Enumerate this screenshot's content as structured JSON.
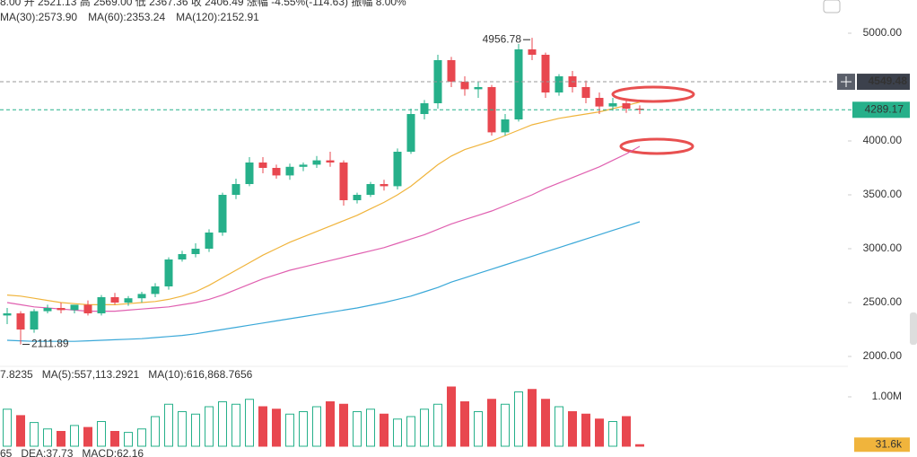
{
  "chart_data": {
    "type": "candlestick",
    "info_line": "8.00 开 2521.13 高 2569.00 低 2367.36 收 2406.49 涨幅 -4.55%(-114.63) 振幅 8.00%",
    "up_color": "#26b08a",
    "down_color": "#e8474f",
    "open": [
      2380,
      2400,
      2250,
      2420,
      2450,
      2430,
      2480,
      2400,
      2550,
      2500,
      2540,
      2580,
      2650,
      2900,
      2950,
      3000,
      3150,
      3500,
      3600,
      3800,
      3750,
      3680,
      3760,
      3780,
      3820,
      3800,
      3450,
      3500,
      3600,
      3580,
      3900,
      4250,
      4350,
      4750,
      4550,
      4480,
      4500,
      4080,
      4200,
      4850,
      4800,
      4450,
      4600,
      4500,
      4400,
      4320,
      4350,
      4300
    ],
    "high": [
      2450,
      2420,
      2440,
      2480,
      2500,
      2470,
      2520,
      2570,
      2590,
      2560,
      2600,
      2680,
      2920,
      2980,
      3050,
      3180,
      3520,
      3650,
      3850,
      3850,
      3780,
      3790,
      3800,
      3860,
      3900,
      3820,
      3520,
      3620,
      3640,
      3930,
      4300,
      4380,
      4800,
      4780,
      4600,
      4550,
      4520,
      4250,
      4900,
      4956.78,
      4820,
      4620,
      4650,
      4560,
      4450,
      4400,
      4380,
      4330
    ],
    "low": [
      2300,
      2111.89,
      2220,
      2400,
      2400,
      2400,
      2380,
      2380,
      2480,
      2470,
      2500,
      2550,
      2620,
      2880,
      2920,
      2970,
      3120,
      3460,
      3580,
      3700,
      3650,
      3640,
      3720,
      3750,
      3760,
      3400,
      3420,
      3480,
      3540,
      3550,
      3880,
      4200,
      4300,
      4500,
      4420,
      4400,
      4050,
      4050,
      4180,
      4750,
      4400,
      4420,
      4450,
      4350,
      4250,
      4280,
      4260,
      4250
    ],
    "close": [
      2400,
      2250,
      2420,
      2450,
      2430,
      2480,
      2400,
      2550,
      2500,
      2540,
      2580,
      2650,
      2900,
      2950,
      3000,
      3150,
      3500,
      3600,
      3800,
      3750,
      3680,
      3760,
      3780,
      3820,
      3800,
      3450,
      3500,
      3600,
      3580,
      3900,
      4250,
      4350,
      4750,
      4550,
      4480,
      4500,
      4080,
      4200,
      4850,
      4800,
      4450,
      4600,
      4500,
      4400,
      4320,
      4350,
      4300,
      4289.17
    ],
    "series": [
      {
        "name": "MA(30):2573.90",
        "color": "#f0b43c",
        "values": [
          2570,
          2560,
          2540,
          2520,
          2500,
          2490,
          2480,
          2480,
          2480,
          2490,
          2500,
          2510,
          2530,
          2560,
          2600,
          2660,
          2730,
          2800,
          2870,
          2940,
          3000,
          3060,
          3110,
          3160,
          3210,
          3260,
          3310,
          3370,
          3430,
          3500,
          3580,
          3680,
          3780,
          3860,
          3920,
          3960,
          4000,
          4050,
          4100,
          4150,
          4180,
          4210,
          4230,
          4250,
          4270,
          4300,
          4330,
          4360
        ]
      },
      {
        "name": "MA(60):2353.24",
        "color": "#e060b0",
        "values": [
          2500,
          2480,
          2460,
          2450,
          2440,
          2430,
          2420,
          2420,
          2420,
          2430,
          2440,
          2450,
          2460,
          2480,
          2500,
          2530,
          2570,
          2620,
          2670,
          2720,
          2760,
          2800,
          2830,
          2860,
          2890,
          2920,
          2950,
          2980,
          3010,
          3050,
          3090,
          3130,
          3180,
          3230,
          3270,
          3310,
          3350,
          3400,
          3450,
          3500,
          3560,
          3610,
          3660,
          3710,
          3760,
          3820,
          3880,
          3950
        ]
      },
      {
        "name": "MA(120):2152.91",
        "color": "#3aa8d8",
        "values": [
          2150,
          2145,
          2140,
          2140,
          2140,
          2140,
          2145,
          2150,
          2155,
          2160,
          2165,
          2175,
          2185,
          2195,
          2210,
          2230,
          2250,
          2270,
          2290,
          2310,
          2330,
          2350,
          2370,
          2390,
          2410,
          2430,
          2450,
          2475,
          2500,
          2530,
          2560,
          2600,
          2640,
          2690,
          2730,
          2770,
          2810,
          2850,
          2890,
          2930,
          2970,
          3010,
          3050,
          3090,
          3130,
          3170,
          3210,
          3250
        ]
      }
    ],
    "ylim": [
      1975,
      5225
    ],
    "yticks": [
      {
        "value": 2000,
        "label": "2000.00"
      },
      {
        "value": 2500,
        "label": "2500.00"
      },
      {
        "value": 3000,
        "label": "3000.00"
      },
      {
        "value": 3500,
        "label": "3500.00"
      },
      {
        "value": 4000,
        "label": "4000.00"
      },
      {
        "value": 4500,
        "label": "4500.00"
      },
      {
        "value": 5000,
        "label": "5000.00"
      }
    ],
    "crosshair": 4549.48,
    "volume": [
      750000,
      620000,
      480000,
      350000,
      300000,
      420000,
      380000,
      500000,
      300000,
      280000,
      350000,
      600000,
      850000,
      700000,
      650000,
      800000,
      900000,
      850000,
      950000,
      800000,
      750000,
      650000,
      700000,
      800000,
      900000,
      850000,
      700000,
      750000,
      650000,
      550000,
      600000,
      750000,
      850000,
      1200000,
      900000,
      700000,
      950000,
      850000,
      1100000,
      1150000,
      950000,
      800000,
      700000,
      650000,
      550000,
      500000,
      600000,
      31600
    ],
    "volume_ylim": [
      0,
      1400000
    ],
    "volume_yticks": [
      {
        "value": 1000000,
        "label": "1.00M"
      }
    ],
    "volume_tag": {
      "value": 31600,
      "label": "31.6k"
    },
    "volume_legend": [
      "7.8235",
      "MA(5):557,113.2921",
      "MA(10):616,868.7656"
    ],
    "macd_legend": [
      "65",
      "DEA:37.73",
      "MACD:62.16"
    ]
  }
}
